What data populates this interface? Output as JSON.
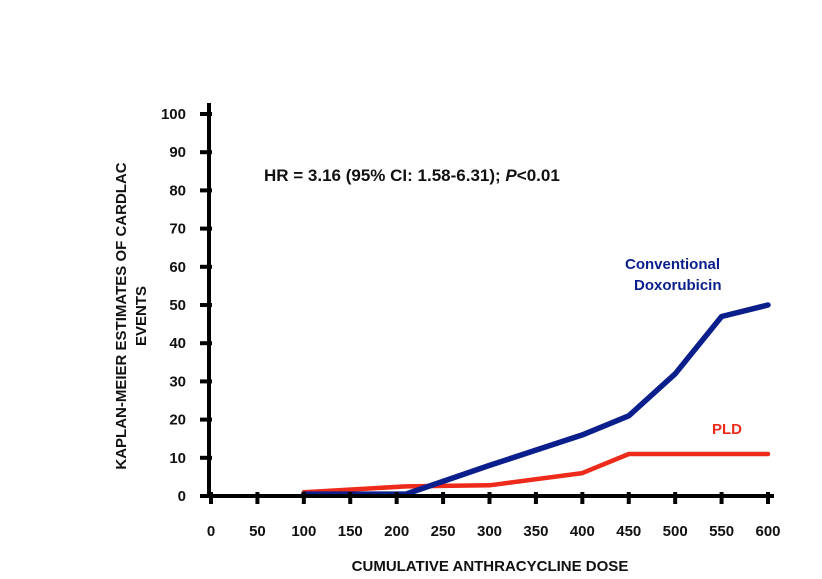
{
  "chart_data": {
    "type": "line",
    "title": "",
    "xlabel": "CUMULATIVE ANTHRACYCLINE DOSE",
    "ylabel_line1": "KAPLAN-MEIER ESTIMATES OF CARDLAC",
    "ylabel_line2": "EVENTS",
    "xlim": [
      0,
      600
    ],
    "ylim": [
      0,
      100
    ],
    "x_ticks": [
      0,
      50,
      100,
      150,
      200,
      250,
      300,
      350,
      400,
      450,
      500,
      550,
      600
    ],
    "x_tick_labels": [
      "0",
      "50",
      "100",
      "150",
      "200",
      "250",
      "300",
      "350",
      "400",
      "450",
      "500",
      "550",
      "600"
    ],
    "y_ticks": [
      0,
      10,
      20,
      30,
      40,
      50,
      60,
      70,
      80,
      90,
      100
    ],
    "y_tick_labels": [
      "0",
      "10",
      "20",
      "30",
      "40",
      "50",
      "60",
      "70",
      "80",
      "90",
      "100"
    ],
    "grid": false,
    "annotation": {
      "prefix": "HR = 3.16 (95% CI: 1.58-6.31); ",
      "p_symbol": "P",
      "suffix": "<0.01"
    },
    "series": [
      {
        "name": "Conventional Doxorubicin",
        "label_line1": "Conventional",
        "label_line2": "Doxorubicin",
        "color": "#0b1f8c",
        "x": [
          100,
          210,
          300,
          400,
          450,
          500,
          550,
          600
        ],
        "y": [
          0.5,
          0.5,
          8,
          16,
          21,
          32,
          47,
          50
        ]
      },
      {
        "name": "PLD",
        "label_line1": "PLD",
        "color": "#ee2a1a",
        "x": [
          100,
          210,
          300,
          400,
          450,
          500,
          550,
          600
        ],
        "y": [
          1,
          2.5,
          2.8,
          6,
          11,
          11,
          11,
          11
        ]
      }
    ]
  }
}
